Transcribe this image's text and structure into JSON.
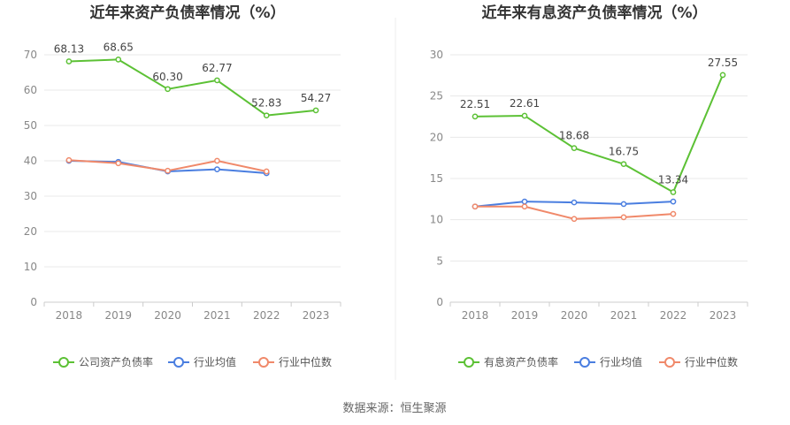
{
  "source_label": "数据来源：恒生聚源",
  "colors": {
    "green": "#5cc135",
    "blue": "#4a7ee0",
    "orange": "#f0896a",
    "grid": "#e8e8e8",
    "axis": "#cccccc",
    "divider": "#eeeeee"
  },
  "chart_data": [
    {
      "type": "line",
      "title": "近年来资产负债率情况（%）",
      "categories": [
        "2018",
        "2019",
        "2020",
        "2021",
        "2022",
        "2023"
      ],
      "ylim": [
        0,
        70
      ],
      "yticks": [
        0,
        10,
        20,
        30,
        40,
        50,
        60,
        70
      ],
      "grid": true,
      "legend_position": "bottom",
      "series": [
        {
          "name": "公司资产负债率",
          "color": "#5cc135",
          "values": [
            68.13,
            68.65,
            60.3,
            62.77,
            52.83,
            54.27
          ],
          "labels": [
            "68.13",
            "68.65",
            "60.30",
            "62.77",
            "52.83",
            "54.27"
          ]
        },
        {
          "name": "行业均值",
          "color": "#4a7ee0",
          "values": [
            40.0,
            39.7,
            37.0,
            37.6,
            36.5,
            null
          ]
        },
        {
          "name": "行业中位数",
          "color": "#f0896a",
          "values": [
            40.2,
            39.3,
            37.2,
            40.0,
            37.0,
            null
          ]
        }
      ]
    },
    {
      "type": "line",
      "title": "近年来有息资产负债率情况（%）",
      "categories": [
        "2018",
        "2019",
        "2020",
        "2021",
        "2022",
        "2023"
      ],
      "ylim": [
        0,
        30
      ],
      "yticks": [
        0,
        5,
        10,
        15,
        20,
        25,
        30
      ],
      "grid": true,
      "legend_position": "bottom",
      "series": [
        {
          "name": "有息资产负债率",
          "color": "#5cc135",
          "values": [
            22.51,
            22.61,
            18.68,
            16.75,
            13.34,
            27.55
          ],
          "labels": [
            "22.51",
            "22.61",
            "18.68",
            "16.75",
            "13.34",
            "27.55"
          ]
        },
        {
          "name": "行业均值",
          "color": "#4a7ee0",
          "values": [
            11.6,
            12.2,
            12.1,
            11.9,
            12.2,
            null
          ]
        },
        {
          "name": "行业中位数",
          "color": "#f0896a",
          "values": [
            11.6,
            11.6,
            10.1,
            10.3,
            10.7,
            null
          ]
        }
      ]
    }
  ]
}
